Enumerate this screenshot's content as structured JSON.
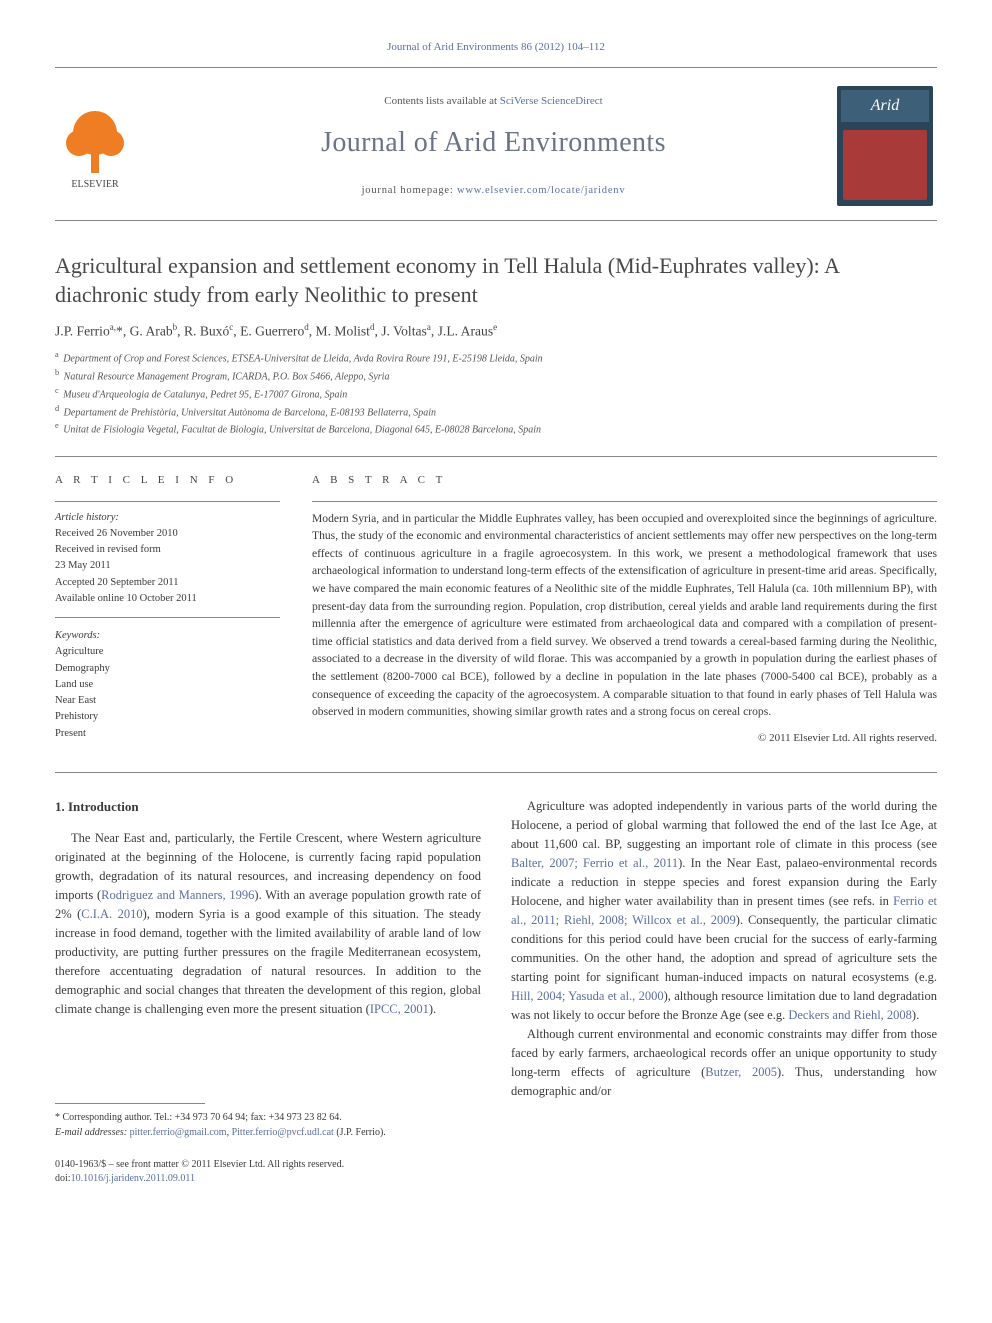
{
  "citation": "Journal of Arid Environments 86 (2012) 104–112",
  "header": {
    "contents_prefix": "Contents lists available at ",
    "contents_link": "SciVerse ScienceDirect",
    "journal": "Journal of Arid Environments",
    "homepage_prefix": "journal homepage: ",
    "homepage_url": "www.elsevier.com/locate/jaridenv",
    "cover_label": "Arid"
  },
  "title": "Agricultural expansion and settlement economy in Tell Halula (Mid-Euphrates valley): A diachronic study from early Neolithic to present",
  "authors_html": "J.P. Ferrio<sup>a,</sup>*, G. Arab<sup>b</sup>, R. Buxó<sup>c</sup>, E. Guerrero<sup>d</sup>, M. Molist<sup>d</sup>, J. Voltas<sup>a</sup>, J.L. Araus<sup>e</sup>",
  "affiliations": [
    {
      "key": "a",
      "text": "Department of Crop and Forest Sciences, ETSEA-Universitat de Lleida, Avda Rovira Roure 191, E-25198 Lleida, Spain"
    },
    {
      "key": "b",
      "text": "Natural Resource Management Program, ICARDA, P.O. Box 5466, Aleppo, Syria"
    },
    {
      "key": "c",
      "text": "Museu d'Arqueologia de Catalunya, Pedret 95, E-17007 Girona, Spain"
    },
    {
      "key": "d",
      "text": "Departament de Prehistòria, Universitat Autònoma de Barcelona, E-08193 Bellaterra, Spain"
    },
    {
      "key": "e",
      "text": "Unitat de Fisiologia Vegetal, Facultat de Biologia, Universitat de Barcelona, Diagonal 645, E-08028 Barcelona, Spain"
    }
  ],
  "article_info": {
    "label": "A R T I C L E   I N F O",
    "history_label": "Article history:",
    "history": [
      "Received 26 November 2010",
      "Received in revised form",
      "23 May 2011",
      "Accepted 20 September 2011",
      "Available online 10 October 2011"
    ],
    "keywords_label": "Keywords:",
    "keywords": [
      "Agriculture",
      "Demography",
      "Land use",
      "Near East",
      "Prehistory",
      "Present"
    ]
  },
  "abstract": {
    "label": "A B S T R A C T",
    "text": "Modern Syria, and in particular the Middle Euphrates valley, has been occupied and overexploited since the beginnings of agriculture. Thus, the study of the economic and environmental characteristics of ancient settlements may offer new perspectives on the long-term effects of continuous agriculture in a fragile agroecosystem. In this work, we present a methodological framework that uses archaeological information to understand long-term effects of the extensification of agriculture in present-time arid areas. Specifically, we have compared the main economic features of a Neolithic site of the middle Euphrates, Tell Halula (ca. 10th millennium BP), with present-day data from the surrounding region. Population, crop distribution, cereal yields and arable land requirements during the first millennia after the emergence of agriculture were estimated from archaeological data and compared with a compilation of present-time official statistics and data derived from a field survey. We observed a trend towards a cereal-based farming during the Neolithic, associated to a decrease in the diversity of wild florae. This was accompanied by a growth in population during the earliest phases of the settlement (8200-7000 cal BCE), followed by a decline in population in the late phases (7000-5400 cal BCE), probably as a consequence of exceeding the capacity of the agroecosystem. A comparable situation to that found in early phases of Tell Halula was observed in modern communities, showing similar growth rates and a strong focus on cereal crops.",
    "copyright": "© 2011 Elsevier Ltd. All rights reserved."
  },
  "body": {
    "heading": "1. Introduction",
    "col1_p1": "The Near East and, particularly, the Fertile Crescent, where Western agriculture originated at the beginning of the Holocene, is currently facing rapid population growth, degradation of its natural resources, and increasing dependency on food imports (",
    "col1_ref1": "Rodriguez and Manners, 1996",
    "col1_p1b": "). With an average population growth rate of 2% (",
    "col1_ref2": "C.I.A. 2010",
    "col1_p1c": "), modern Syria is a good example of this situation. The steady increase in food demand, together with the limited availability of arable land of low productivity, are putting further pressures on the fragile Mediterranean ecosystem, therefore accentuating degradation of natural resources. In addition to the demographic and social changes that threaten the development of this region, global climate change is challenging even more the present situation (",
    "col1_ref3": "IPCC, 2001",
    "col1_p1d": ").",
    "col2_p1": "Agriculture was adopted independently in various parts of the world during the Holocene, a period of global warming that followed the end of the last Ice Age, at about 11,600 cal. BP, suggesting an important role of climate in this process (see ",
    "col2_ref1": "Balter, 2007; Ferrio et al., 2011",
    "col2_p1b": "). In the Near East, palaeo-environmental records indicate a reduction in steppe species and forest expansion during the Early Holocene, and higher water availability than in present times (see refs. in ",
    "col2_ref2": "Ferrio et al., 2011; Riehl, 2008; Willcox et al., 2009",
    "col2_p1c": "). Consequently, the particular climatic conditions for this period could have been crucial for the success of early-farming communities. On the other hand, the adoption and spread of agriculture sets the starting point for significant human-induced impacts on natural ecosystems (e.g. ",
    "col2_ref3": "Hill, 2004; Yasuda et al., 2000",
    "col2_p1d": "), although resource limitation due to land degradation was not likely to occur before the Bronze Age (see e.g. ",
    "col2_ref4": "Deckers and Riehl, 2008",
    "col2_p1e": ").",
    "col2_p2": "Although current environmental and economic constraints may differ from those faced by early farmers, archaeological records offer an unique opportunity to study long-term effects of agriculture (",
    "col2_ref5": "Butzer, 2005",
    "col2_p2b": "). Thus, understanding how demographic and/or"
  },
  "footnote": {
    "corr": "* Corresponding author. Tel.: +34 973 70 64 94; fax: +34 973 23 82 64.",
    "email_label": "E-mail addresses: ",
    "email1": "pitter.ferrio@gmail.com",
    "email_sep": ", ",
    "email2": "Pitter.ferrio@pvcf.udl.cat",
    "email_tail": " (J.P. Ferrio)."
  },
  "bottom": {
    "issn": "0140-1963/$ – see front matter © 2011 Elsevier Ltd. All rights reserved.",
    "doi_label": "doi:",
    "doi": "10.1016/j.jaridenv.2011.09.011"
  },
  "colors": {
    "link": "#5b6e9f",
    "text": "#3a3a3a",
    "elsevier": "#ee7d23",
    "cover_bg": "#2a4558",
    "cover_map": "#a83a3a"
  }
}
